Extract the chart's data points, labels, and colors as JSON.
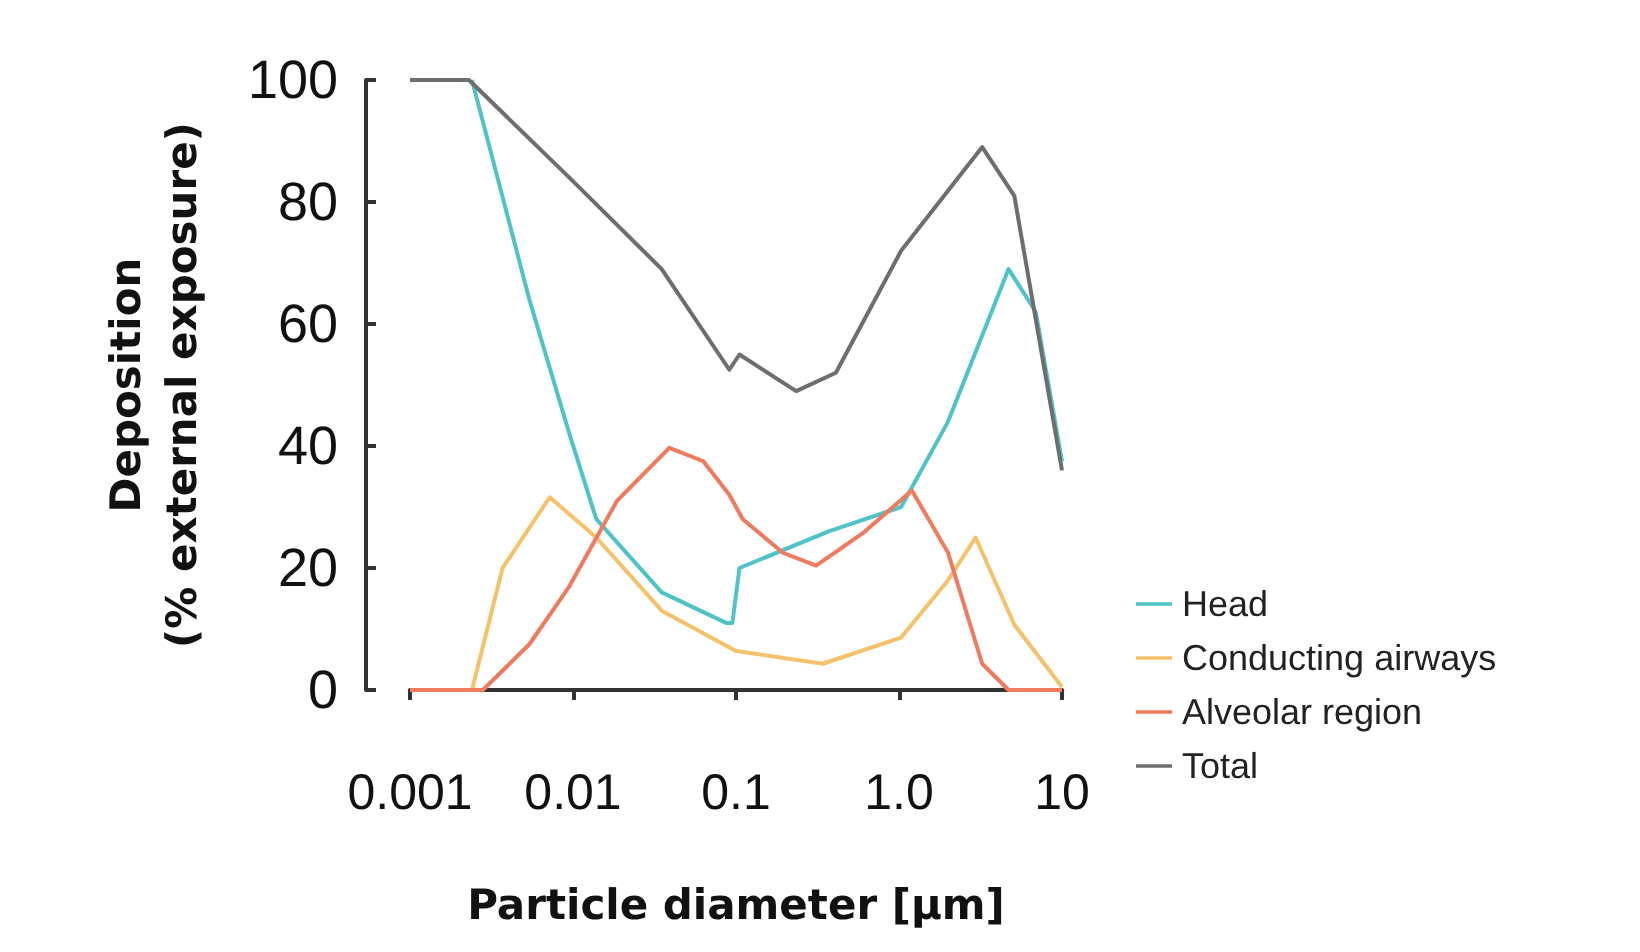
{
  "chart_data": {
    "type": "line",
    "xlabel": "Particle diameter [μm]",
    "ylabel": "Deposition\n(% external exposure)",
    "log": "x",
    "xlim": [
      0.001,
      10
    ],
    "xticks": [
      0.001,
      0.01,
      0.1,
      {
        "value": 1,
        "label": "1.0"
      },
      10
    ],
    "ylim": [
      0,
      100
    ],
    "yticks": [
      0,
      20,
      40,
      60,
      80,
      100
    ],
    "grid": false,
    "legend": "right",
    "marker": "none",
    "line_style": "solid",
    "series": [
      {
        "name": "Head",
        "color": "#4fc3c8",
        "x": [
          0.0024,
          0.0054,
          0.0095,
          0.0139,
          0.035,
          0.087,
          0.095,
          0.105,
          0.37,
          1.03,
          2.0,
          4.7,
          6.9,
          10
        ],
        "values": [
          100,
          64,
          42,
          28,
          16,
          11,
          11,
          20,
          26,
          30,
          44,
          69,
          62,
          37.5
        ]
      },
      {
        "name": "Conducting airways",
        "color": "#f5c26b",
        "x": [
          0.001,
          0.0024,
          0.0037,
          0.0072,
          0.0139,
          0.035,
          0.1,
          0.34,
          1.03,
          2.0,
          2.95,
          5.1,
          10
        ],
        "values": [
          0,
          0,
          20,
          31.6,
          25,
          13,
          6.4,
          4.3,
          8.6,
          18,
          25,
          10.7,
          0.5
        ]
      },
      {
        "name": "Alveolar region",
        "color": "#f07a5e",
        "x": [
          0.001,
          0.0028,
          0.0054,
          0.0095,
          0.0186,
          0.039,
          0.063,
          0.091,
          0.11,
          0.194,
          0.31,
          0.6,
          1.2,
          2.0,
          3.24,
          4.7,
          10
        ],
        "values": [
          0,
          0,
          7.5,
          17,
          31,
          39.7,
          37.5,
          32,
          28,
          22.5,
          20.4,
          25.7,
          32.7,
          22.5,
          4.3,
          0,
          0
        ]
      },
      {
        "name": "Total",
        "color": "#6e6e6e",
        "x": [
          0.001,
          0.0023,
          0.0095,
          0.035,
          0.091,
          0.105,
          0.234,
          0.41,
          1.03,
          3.24,
          5.1,
          10
        ],
        "values": [
          100,
          100,
          84,
          69,
          52.5,
          55,
          49,
          52,
          72,
          89,
          81,
          36
        ]
      }
    ]
  }
}
